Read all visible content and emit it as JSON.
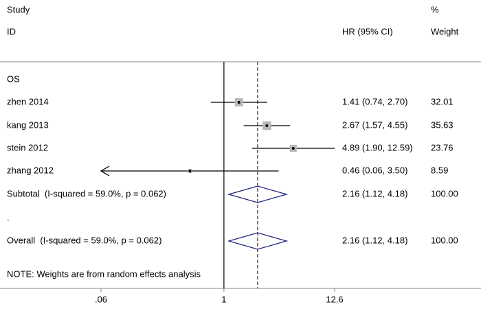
{
  "chart_data": {
    "type": "forest",
    "headers": {
      "study": "Study",
      "id": "ID",
      "effect": "HR (95% CI)",
      "pct": "%",
      "weight": "Weight"
    },
    "subgroup": "OS",
    "studies": [
      {
        "label": "zhen 2014",
        "hr": 1.41,
        "lower": 0.74,
        "upper": 2.7,
        "text": "1.41 (0.74, 2.70)",
        "weight": 32.01
      },
      {
        "label": "kang 2013",
        "hr": 2.67,
        "lower": 1.57,
        "upper": 4.55,
        "text": "2.67 (1.57, 4.55)",
        "weight": 35.63
      },
      {
        "label": "stein 2012",
        "hr": 4.89,
        "lower": 1.9,
        "upper": 12.59,
        "text": "4.89 (1.90, 12.59)",
        "weight": 23.76
      },
      {
        "label": "zhang 2012",
        "hr": 0.46,
        "lower": 0.06,
        "upper": 3.5,
        "text": "0.46 (0.06, 3.50)",
        "weight": 8.59
      }
    ],
    "subtotal": {
      "label": "Subtotal  (I-squared = 59.0%, p = 0.062)",
      "hr": 2.16,
      "lower": 1.12,
      "upper": 4.18,
      "text": "2.16 (1.12, 4.18)",
      "weight": {
        "value": 100,
        "label": "100.00"
      }
    },
    "separator": ".",
    "overall": {
      "label": "Overall  (I-squared = 59.0%, p = 0.062)",
      "hr": 2.16,
      "lower": 1.12,
      "upper": 4.18,
      "text": "2.16 (1.12, 4.18)",
      "weight": {
        "value": 100,
        "label": "100.00"
      }
    },
    "note": "NOTE: Weights are from random effects analysis",
    "xscale": "log",
    "xlim": [
      0.06,
      12.6
    ],
    "xticks": [
      {
        "value": 0.06,
        "label": ".06"
      },
      1,
      12.6
    ],
    "null_line": 1,
    "diamond_color": "#1a237e",
    "pooled_line_color": "#8b2232",
    "box_color": "#b8b8b8"
  }
}
